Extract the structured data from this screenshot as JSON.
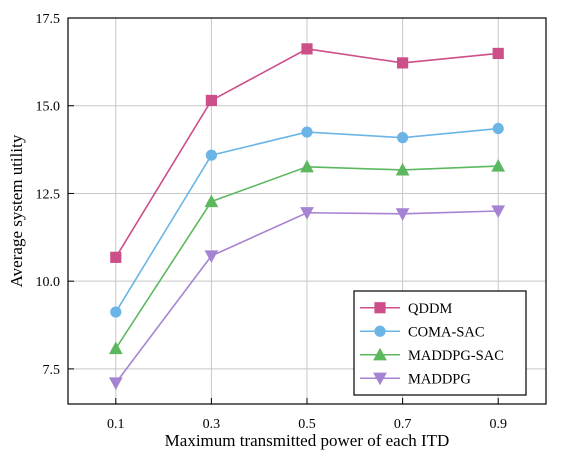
{
  "chart_data": {
    "type": "line",
    "title": "",
    "xlabel": "Maximum transmitted power of each ITD",
    "ylabel": "Average system utility",
    "x": [
      0.1,
      0.3,
      0.5,
      0.7,
      0.9
    ],
    "x_tick_labels": [
      "0.1",
      "0.3",
      "0.5",
      "0.7",
      "0.9"
    ],
    "xlim": [
      0.0,
      1.0
    ],
    "ylim": [
      6.5,
      17.5
    ],
    "y_ticks": [
      7.5,
      10.0,
      12.5,
      15.0,
      17.5
    ],
    "y_tick_labels": [
      "7.5",
      "10.0",
      "12.5",
      "15.0",
      "17.5"
    ],
    "grid": true,
    "legend_position": "bottom-right",
    "series": [
      {
        "name": "QDDM",
        "color": "#cc4f8a",
        "marker": "square",
        "values": [
          10.68,
          15.15,
          16.62,
          16.22,
          16.49
        ]
      },
      {
        "name": "COMA-SAC",
        "color": "#6bb5e6",
        "marker": "circle",
        "values": [
          9.12,
          13.59,
          14.25,
          14.09,
          14.35
        ]
      },
      {
        "name": "MADDPG-SAC",
        "color": "#5cb85f",
        "marker": "triangle-up",
        "values": [
          8.08,
          12.27,
          13.26,
          13.17,
          13.28
        ]
      },
      {
        "name": "MADDPG",
        "color": "#a583d2",
        "marker": "triangle-down",
        "values": [
          7.1,
          10.72,
          11.95,
          11.92,
          12.0
        ]
      }
    ]
  }
}
